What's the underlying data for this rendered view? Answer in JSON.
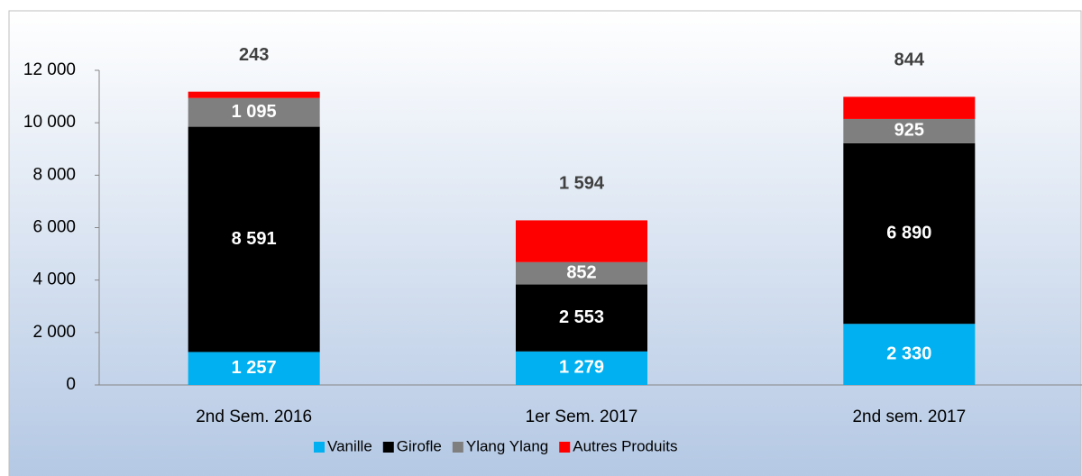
{
  "chart_data": {
    "type": "stacked_bar",
    "categories": [
      "2nd Sem. 2016",
      "1er Sem. 2017",
      "2nd sem. 2017"
    ],
    "series": [
      {
        "name": "Vanille",
        "color": "#00b0f0",
        "values": [
          1257,
          1279,
          2330
        ],
        "value_labels": [
          "1 257",
          "1 279",
          "2 330"
        ]
      },
      {
        "name": "Girofle",
        "color": "#000000",
        "values": [
          8591,
          2553,
          6890
        ],
        "value_labels": [
          "8 591",
          "2 553",
          "6 890"
        ]
      },
      {
        "name": "Ylang Ylang",
        "color": "#7f7f7f",
        "values": [
          1095,
          852,
          925
        ],
        "value_labels": [
          "1 095",
          "852",
          "925"
        ]
      },
      {
        "name": "Autres Produits",
        "color": "#ff0000",
        "values": [
          243,
          1594,
          844
        ],
        "value_labels": [
          "243",
          "1 594",
          "844"
        ]
      }
    ],
    "ylim": [
      0,
      12000
    ],
    "yticks": [
      0,
      {
        "value": 2000,
        "label": "2 000"
      },
      {
        "value": 4000,
        "label": "4 000"
      },
      {
        "value": 6000,
        "label": "6 000"
      },
      {
        "value": 8000,
        "label": "8 000"
      },
      {
        "value": 10000,
        "label": "10 000"
      },
      {
        "value": 12000,
        "label": "12 000"
      }
    ],
    "legend": "bottom"
  }
}
